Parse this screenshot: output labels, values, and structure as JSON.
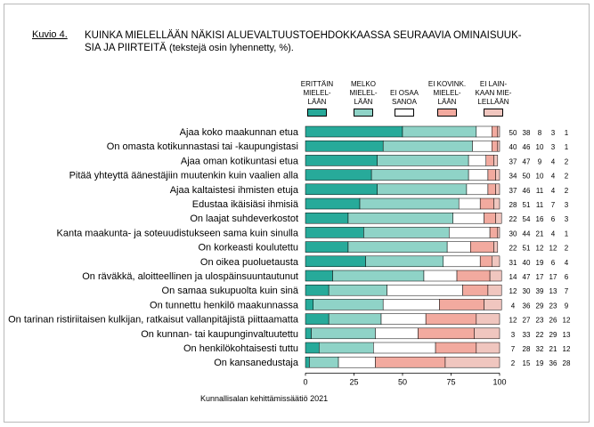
{
  "figure": {
    "label": "Kuvio 4.",
    "title_line1": "KUINKA MIELELLÄÄN NÄKISI ALUEVALTUUSTOEHDOKKAASSA SEURAAVIA OMINAISUUK-",
    "title_line2": "SIA JA PIIRTEITÄ",
    "title_note": "(tekstejä osin lyhennetty, %).",
    "source": "Kunnallisalan kehittämissäätiö 2021"
  },
  "chart_data": {
    "type": "bar",
    "orientation": "horizontal",
    "stacked": true,
    "xlim": [
      0,
      100
    ],
    "xticks": [
      0,
      25,
      50,
      75,
      100
    ],
    "legend_position": "top",
    "categories": [
      "Ajaa koko maakunnan etua",
      "On omasta kotikunnastasi tai -kaupungistasi",
      "Ajaa oman kotikuntasi etua",
      "Pitää yhteyttä äänestäjiin muutenkin kuin vaalien alla",
      "Ajaa kaltaistesi ihmisten etuja",
      "Edustaa ikäisiäsi ihmisiä",
      "On laajat suhdeverkostot",
      "Kanta maakunta- ja soteuudistukseen sama kuin sinulla",
      "On korkeasti koulutettu",
      "On oikea puoluetausta",
      "On räväkkä, aloitteellinen ja ulospäinsuuntautunut",
      "On samaa sukupuolta kuin sinä",
      "On tunnettu henkilö maakunnassa",
      "On tarinan ristiriitaisen kulkijan, ratkaisut vallanpitäjistä piittaamatta",
      "On kunnan- tai kaupunginvaltuutettu",
      "On henkilökohtaisesti tuttu",
      "On kansanedustaja"
    ],
    "series": [
      {
        "name": "ERITTÄIN MIELEL-LÄÄN",
        "color": "#27aa9a",
        "values": [
          50,
          40,
          37,
          34,
          37,
          28,
          22,
          30,
          22,
          31,
          14,
          12,
          4,
          12,
          3,
          7,
          2
        ]
      },
      {
        "name": "MELKO MIELEL-LÄÄN",
        "color": "#8fd3c7",
        "values": [
          38,
          46,
          47,
          50,
          46,
          51,
          54,
          44,
          51,
          40,
          47,
          30,
          36,
          27,
          33,
          28,
          15
        ]
      },
      {
        "name": "EI OSAA SANOA",
        "color": "#ffffff",
        "values": [
          8,
          10,
          9,
          10,
          11,
          11,
          16,
          21,
          12,
          19,
          17,
          39,
          29,
          23,
          22,
          32,
          19
        ]
      },
      {
        "name": "EI KOVINK. MIELEL-LÄÄN",
        "color": "#f2aa9f",
        "values": [
          3,
          3,
          4,
          4,
          4,
          7,
          6,
          4,
          12,
          6,
          17,
          13,
          23,
          26,
          29,
          21,
          36
        ]
      },
      {
        "name": "EI LAIN-KAAN MIE-LELLÄÄN",
        "color": "#f0c6bf",
        "values": [
          1,
          1,
          2,
          2,
          2,
          3,
          3,
          1,
          2,
          4,
          6,
          7,
          9,
          12,
          13,
          12,
          28
        ]
      }
    ]
  },
  "legend_labels": [
    "ERITTÄIN MIELEL- LÄÄN",
    "MELKO MIELEL- LÄÄN",
    "EI OSAA SANOA",
    "EI KOVINK. MIELEL- LÄÄN",
    "EI LAIN- KAAN MIE- LELLÄÄN"
  ]
}
